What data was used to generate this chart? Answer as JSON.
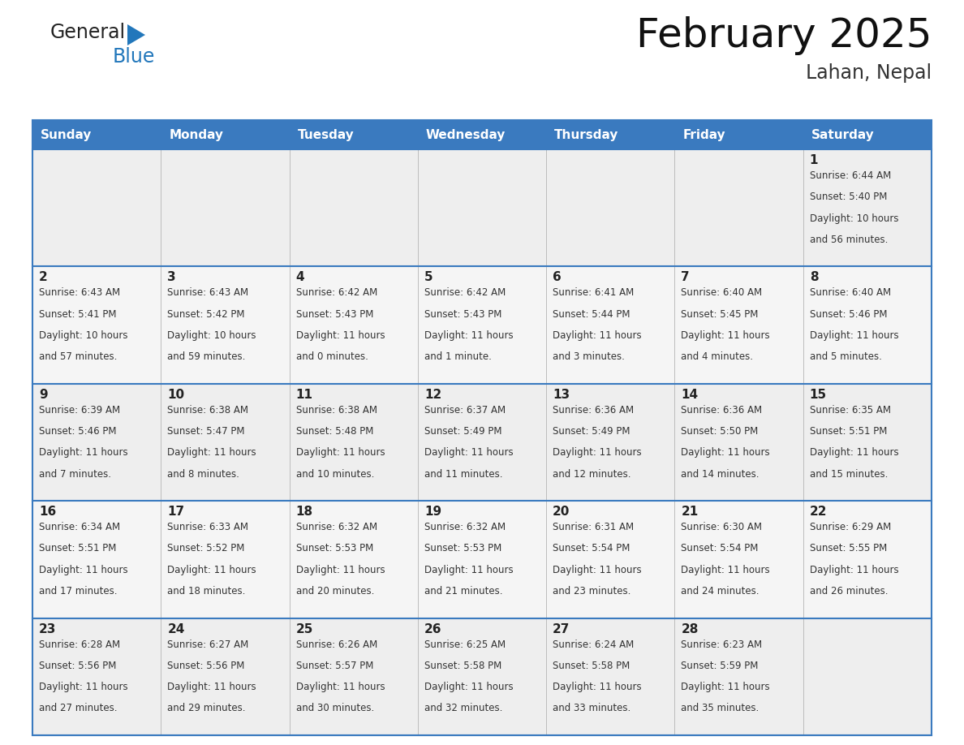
{
  "title": "February 2025",
  "subtitle": "Lahan, Nepal",
  "header_bg": "#3a7abf",
  "header_text_color": "#ffffff",
  "cell_bg_row0": "#eeeeee",
  "cell_bg_row1": "#f5f5f5",
  "cell_bg_row2": "#eeeeee",
  "cell_bg_row3": "#f5f5f5",
  "cell_bg_row4": "#eeeeee",
  "day_names": [
    "Sunday",
    "Monday",
    "Tuesday",
    "Wednesday",
    "Thursday",
    "Friday",
    "Saturday"
  ],
  "days": [
    {
      "day": 1,
      "col": 6,
      "row": 0,
      "sunrise": "6:44 AM",
      "sunset": "5:40 PM",
      "daylight_hours": 10,
      "daylight_minutes": 56
    },
    {
      "day": 2,
      "col": 0,
      "row": 1,
      "sunrise": "6:43 AM",
      "sunset": "5:41 PM",
      "daylight_hours": 10,
      "daylight_minutes": 57
    },
    {
      "day": 3,
      "col": 1,
      "row": 1,
      "sunrise": "6:43 AM",
      "sunset": "5:42 PM",
      "daylight_hours": 10,
      "daylight_minutes": 59
    },
    {
      "day": 4,
      "col": 2,
      "row": 1,
      "sunrise": "6:42 AM",
      "sunset": "5:43 PM",
      "daylight_hours": 11,
      "daylight_minutes": 0
    },
    {
      "day": 5,
      "col": 3,
      "row": 1,
      "sunrise": "6:42 AM",
      "sunset": "5:43 PM",
      "daylight_hours": 11,
      "daylight_minutes": 1
    },
    {
      "day": 6,
      "col": 4,
      "row": 1,
      "sunrise": "6:41 AM",
      "sunset": "5:44 PM",
      "daylight_hours": 11,
      "daylight_minutes": 3
    },
    {
      "day": 7,
      "col": 5,
      "row": 1,
      "sunrise": "6:40 AM",
      "sunset": "5:45 PM",
      "daylight_hours": 11,
      "daylight_minutes": 4
    },
    {
      "day": 8,
      "col": 6,
      "row": 1,
      "sunrise": "6:40 AM",
      "sunset": "5:46 PM",
      "daylight_hours": 11,
      "daylight_minutes": 5
    },
    {
      "day": 9,
      "col": 0,
      "row": 2,
      "sunrise": "6:39 AM",
      "sunset": "5:46 PM",
      "daylight_hours": 11,
      "daylight_minutes": 7
    },
    {
      "day": 10,
      "col": 1,
      "row": 2,
      "sunrise": "6:38 AM",
      "sunset": "5:47 PM",
      "daylight_hours": 11,
      "daylight_minutes": 8
    },
    {
      "day": 11,
      "col": 2,
      "row": 2,
      "sunrise": "6:38 AM",
      "sunset": "5:48 PM",
      "daylight_hours": 11,
      "daylight_minutes": 10
    },
    {
      "day": 12,
      "col": 3,
      "row": 2,
      "sunrise": "6:37 AM",
      "sunset": "5:49 PM",
      "daylight_hours": 11,
      "daylight_minutes": 11
    },
    {
      "day": 13,
      "col": 4,
      "row": 2,
      "sunrise": "6:36 AM",
      "sunset": "5:49 PM",
      "daylight_hours": 11,
      "daylight_minutes": 12
    },
    {
      "day": 14,
      "col": 5,
      "row": 2,
      "sunrise": "6:36 AM",
      "sunset": "5:50 PM",
      "daylight_hours": 11,
      "daylight_minutes": 14
    },
    {
      "day": 15,
      "col": 6,
      "row": 2,
      "sunrise": "6:35 AM",
      "sunset": "5:51 PM",
      "daylight_hours": 11,
      "daylight_minutes": 15
    },
    {
      "day": 16,
      "col": 0,
      "row": 3,
      "sunrise": "6:34 AM",
      "sunset": "5:51 PM",
      "daylight_hours": 11,
      "daylight_minutes": 17
    },
    {
      "day": 17,
      "col": 1,
      "row": 3,
      "sunrise": "6:33 AM",
      "sunset": "5:52 PM",
      "daylight_hours": 11,
      "daylight_minutes": 18
    },
    {
      "day": 18,
      "col": 2,
      "row": 3,
      "sunrise": "6:32 AM",
      "sunset": "5:53 PM",
      "daylight_hours": 11,
      "daylight_minutes": 20
    },
    {
      "day": 19,
      "col": 3,
      "row": 3,
      "sunrise": "6:32 AM",
      "sunset": "5:53 PM",
      "daylight_hours": 11,
      "daylight_minutes": 21
    },
    {
      "day": 20,
      "col": 4,
      "row": 3,
      "sunrise": "6:31 AM",
      "sunset": "5:54 PM",
      "daylight_hours": 11,
      "daylight_minutes": 23
    },
    {
      "day": 21,
      "col": 5,
      "row": 3,
      "sunrise": "6:30 AM",
      "sunset": "5:54 PM",
      "daylight_hours": 11,
      "daylight_minutes": 24
    },
    {
      "day": 22,
      "col": 6,
      "row": 3,
      "sunrise": "6:29 AM",
      "sunset": "5:55 PM",
      "daylight_hours": 11,
      "daylight_minutes": 26
    },
    {
      "day": 23,
      "col": 0,
      "row": 4,
      "sunrise": "6:28 AM",
      "sunset": "5:56 PM",
      "daylight_hours": 11,
      "daylight_minutes": 27
    },
    {
      "day": 24,
      "col": 1,
      "row": 4,
      "sunrise": "6:27 AM",
      "sunset": "5:56 PM",
      "daylight_hours": 11,
      "daylight_minutes": 29
    },
    {
      "day": 25,
      "col": 2,
      "row": 4,
      "sunrise": "6:26 AM",
      "sunset": "5:57 PM",
      "daylight_hours": 11,
      "daylight_minutes": 30
    },
    {
      "day": 26,
      "col": 3,
      "row": 4,
      "sunrise": "6:25 AM",
      "sunset": "5:58 PM",
      "daylight_hours": 11,
      "daylight_minutes": 32
    },
    {
      "day": 27,
      "col": 4,
      "row": 4,
      "sunrise": "6:24 AM",
      "sunset": "5:58 PM",
      "daylight_hours": 11,
      "daylight_minutes": 33
    },
    {
      "day": 28,
      "col": 5,
      "row": 4,
      "sunrise": "6:23 AM",
      "sunset": "5:59 PM",
      "daylight_hours": 11,
      "daylight_minutes": 35
    }
  ],
  "num_rows": 5,
  "num_cols": 7,
  "logo_general_color": "#222222",
  "logo_blue_color": "#2277bb",
  "logo_triangle_color": "#2277bb",
  "border_color": "#3a7abf",
  "grid_line_color": "#bbbbbb",
  "title_fontsize": 36,
  "subtitle_fontsize": 17,
  "header_fontsize": 11,
  "day_num_fontsize": 11,
  "cell_text_fontsize": 8.5
}
